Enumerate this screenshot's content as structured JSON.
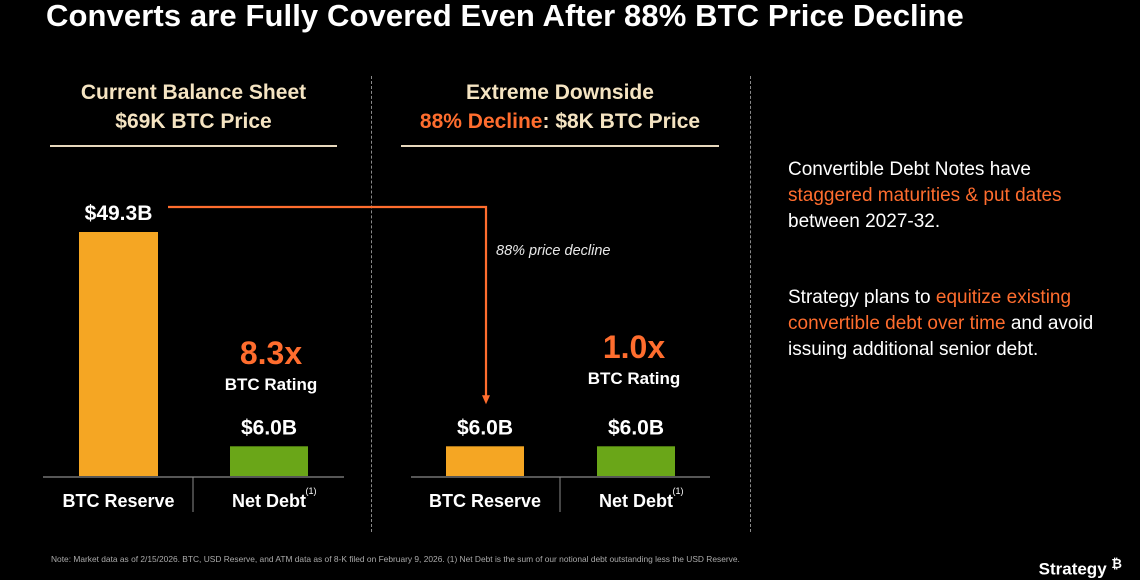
{
  "title": "Converts are Fully Covered Even After 88% BTC Price Decline",
  "left_panel": {
    "heading_line1": "Current Balance Sheet",
    "heading_line2": "$69K BTC Price"
  },
  "right_panel": {
    "heading_line1": "Extreme Downside",
    "heading_accent": "88% Decline",
    "heading_rest": ": $8K BTC Price"
  },
  "chart_data": [
    {
      "type": "bar",
      "title": "Current Balance Sheet $69K BTC Price",
      "categories": [
        "BTC Reserve",
        "Net Debt"
      ],
      "category_superscripts": [
        "",
        "(1)"
      ],
      "values": [
        49.3,
        6.0
      ],
      "value_labels": [
        "$49.3B",
        "$6.0B"
      ],
      "colors": [
        "#F5A623",
        "#6AA618"
      ],
      "ratio_value": "8.3x",
      "ratio_label": "BTC Rating"
    },
    {
      "type": "bar",
      "title": "Extreme Downside 88% Decline: $8K BTC Price",
      "categories": [
        "BTC Reserve",
        "Net Debt"
      ],
      "category_superscripts": [
        "",
        "(1)"
      ],
      "values": [
        6.0,
        6.0
      ],
      "value_labels": [
        "$6.0B",
        "$6.0B"
      ],
      "colors": [
        "#F5A623",
        "#6AA618"
      ],
      "ratio_value": "1.0x",
      "ratio_label": "BTC Rating"
    }
  ],
  "connector": {
    "label": "88% price decline",
    "color": "#FF6D2E"
  },
  "side": {
    "p1_a": "Convertible Debt Notes have ",
    "p1_hl": "staggered maturities & put dates",
    "p1_b": " between 2027-32.",
    "p2_a": "Strategy plans to ",
    "p2_hl": "equitize existing convertible debt over time",
    "p2_b": " and avoid issuing additional senior debt."
  },
  "footnote": "Note: Market data as of 2/15/2026. BTC, USD Reserve, and ATM data as of 8-K filed on February 9, 2026. (1) Net Debt is the sum of our notional debt outstanding less the USD Reserve.",
  "logo": {
    "text": "Strategy",
    "icon": "bitcoin-icon"
  }
}
